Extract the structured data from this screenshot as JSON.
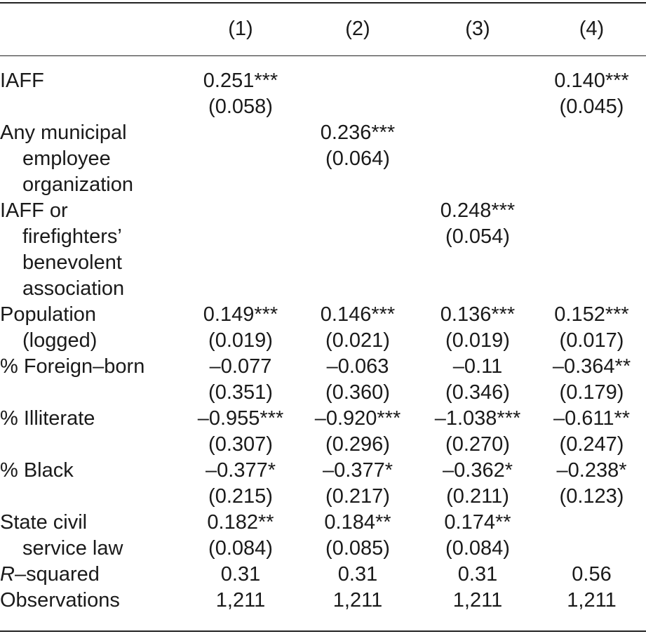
{
  "columns": [
    "(1)",
    "(2)",
    "(3)",
    "(4)"
  ],
  "rows": [
    {
      "label_lines": [
        "IAFF"
      ],
      "cells": [
        {
          "coef": "0.251***",
          "se": "(0.058)"
        },
        {
          "coef": "",
          "se": ""
        },
        {
          "coef": "",
          "se": ""
        },
        {
          "coef": "0.140***",
          "se": "(0.045)"
        }
      ]
    },
    {
      "label_lines": [
        "Any municipal",
        "employee",
        "organization"
      ],
      "cells": [
        {
          "coef": "",
          "se": ""
        },
        {
          "coef": "0.236***",
          "se": "(0.064)"
        },
        {
          "coef": "",
          "se": ""
        },
        {
          "coef": "",
          "se": ""
        }
      ]
    },
    {
      "label_lines": [
        "IAFF or",
        "firefighters’",
        "benevolent",
        "association"
      ],
      "cells": [
        {
          "coef": "",
          "se": ""
        },
        {
          "coef": "",
          "se": ""
        },
        {
          "coef": "0.248***",
          "se": "(0.054)"
        },
        {
          "coef": "",
          "se": ""
        }
      ]
    },
    {
      "label_lines": [
        "Population",
        "(logged)"
      ],
      "cells": [
        {
          "coef": "0.149***",
          "se": "(0.019)"
        },
        {
          "coef": "0.146***",
          "se": "(0.021)"
        },
        {
          "coef": "0.136***",
          "se": "(0.019)"
        },
        {
          "coef": "0.152***",
          "se": "(0.017)"
        }
      ]
    },
    {
      "label_lines": [
        "% Foreign–born"
      ],
      "cells": [
        {
          "coef": "–0.077",
          "se": "(0.351)"
        },
        {
          "coef": "–0.063",
          "se": "(0.360)"
        },
        {
          "coef": "–0.11",
          "se": "(0.346)"
        },
        {
          "coef": "–0.364**",
          "se": "(0.179)"
        }
      ]
    },
    {
      "label_lines": [
        "% Illiterate"
      ],
      "cells": [
        {
          "coef": "–0.955***",
          "se": "(0.307)"
        },
        {
          "coef": "–0.920***",
          "se": "(0.296)"
        },
        {
          "coef": "–1.038***",
          "se": "(0.270)"
        },
        {
          "coef": "–0.611**",
          "se": "(0.247)"
        }
      ]
    },
    {
      "label_lines": [
        "% Black"
      ],
      "cells": [
        {
          "coef": "–0.377*",
          "se": "(0.215)"
        },
        {
          "coef": "–0.377*",
          "se": "(0.217)"
        },
        {
          "coef": "–0.362*",
          "se": "(0.211)"
        },
        {
          "coef": "–0.238*",
          "se": "(0.123)"
        }
      ]
    },
    {
      "label_lines": [
        "State civil",
        "service law"
      ],
      "cells": [
        {
          "coef": "0.182**",
          "se": "(0.084)"
        },
        {
          "coef": "0.184**",
          "se": "(0.085)"
        },
        {
          "coef": "0.174**",
          "se": "(0.084)"
        },
        {
          "coef": "",
          "se": ""
        }
      ]
    }
  ],
  "r_squared": {
    "label_italic": "R",
    "label_rest": "–squared",
    "values": [
      "0.31",
      "0.31",
      "0.31",
      "0.56"
    ]
  },
  "observations": {
    "label": "Observations",
    "values": [
      "1,211",
      "1,211",
      "1,211",
      "1,211"
    ]
  }
}
